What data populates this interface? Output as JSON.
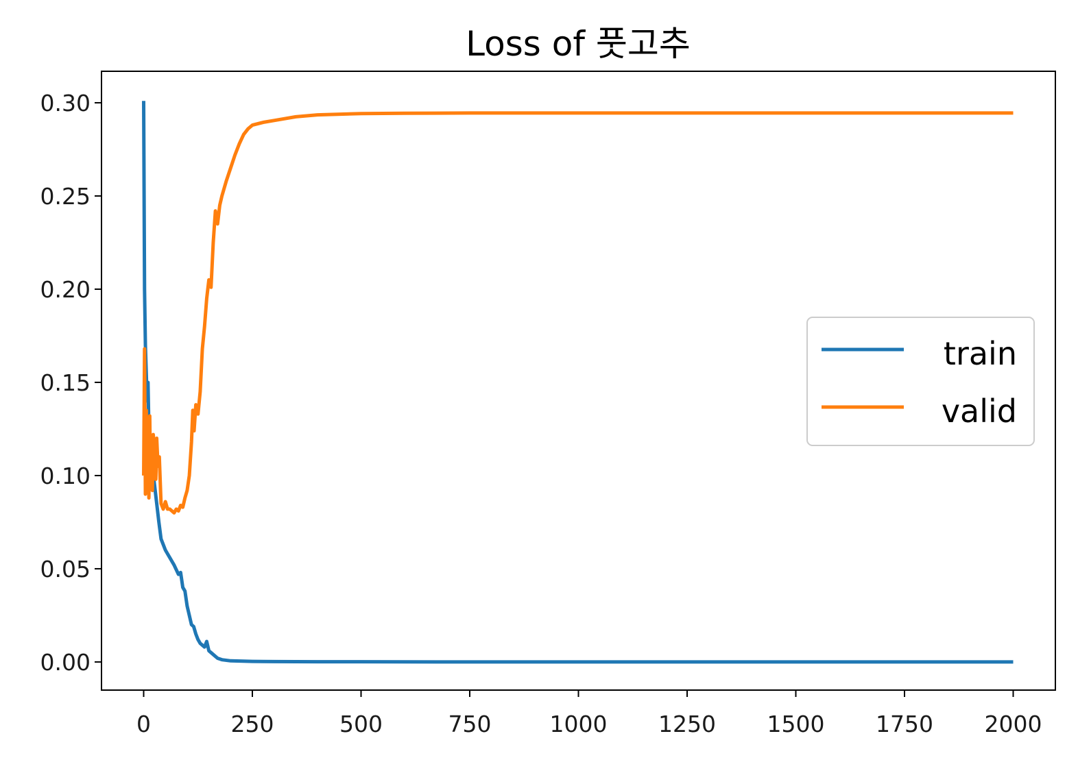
{
  "chart_data": {
    "type": "line",
    "title": "Loss of 풋고추",
    "xlabel": "",
    "ylabel": "",
    "xlim": [
      -97,
      2097
    ],
    "ylim": [
      -0.0151,
      0.3169
    ],
    "x_ticks": [
      0,
      250,
      500,
      750,
      1000,
      1250,
      1500,
      1750,
      2000
    ],
    "x_tick_labels": [
      "0",
      "250",
      "500",
      "750",
      "1000",
      "1250",
      "1500",
      "1750",
      "2000"
    ],
    "y_ticks": [
      0.0,
      0.05,
      0.1,
      0.15,
      0.2,
      0.25,
      0.3
    ],
    "y_tick_labels": [
      "0.00",
      "0.05",
      "0.10",
      "0.15",
      "0.20",
      "0.25",
      "0.30"
    ],
    "grid": false,
    "legend": {
      "position": "center-right",
      "entries": [
        "train",
        "valid"
      ]
    },
    "series": [
      {
        "name": "train",
        "color": "#1f77b4",
        "points": [
          [
            0,
            0.301
          ],
          [
            2,
            0.2
          ],
          [
            4,
            0.17
          ],
          [
            6,
            0.155
          ],
          [
            8,
            0.14
          ],
          [
            10,
            0.15
          ],
          [
            12,
            0.125
          ],
          [
            14,
            0.12
          ],
          [
            16,
            0.11
          ],
          [
            18,
            0.115
          ],
          [
            20,
            0.105
          ],
          [
            25,
            0.095
          ],
          [
            30,
            0.085
          ],
          [
            35,
            0.075
          ],
          [
            40,
            0.066
          ],
          [
            45,
            0.063
          ],
          [
            50,
            0.06
          ],
          [
            60,
            0.056
          ],
          [
            70,
            0.052
          ],
          [
            80,
            0.047
          ],
          [
            85,
            0.048
          ],
          [
            90,
            0.04
          ],
          [
            95,
            0.038
          ],
          [
            100,
            0.03
          ],
          [
            105,
            0.025
          ],
          [
            110,
            0.02
          ],
          [
            115,
            0.019
          ],
          [
            120,
            0.015
          ],
          [
            125,
            0.012
          ],
          [
            130,
            0.01
          ],
          [
            135,
            0.009
          ],
          [
            140,
            0.008
          ],
          [
            145,
            0.011
          ],
          [
            150,
            0.006
          ],
          [
            155,
            0.005
          ],
          [
            160,
            0.004
          ],
          [
            170,
            0.002
          ],
          [
            180,
            0.0012
          ],
          [
            200,
            0.0006
          ],
          [
            250,
            0.0003
          ],
          [
            300,
            0.0002
          ],
          [
            400,
            0.0001
          ],
          [
            500,
            0.0001
          ],
          [
            750,
            0.0
          ],
          [
            1000,
            0.0
          ],
          [
            1500,
            0.0
          ],
          [
            2000,
            0.0
          ]
        ]
      },
      {
        "name": "valid",
        "color": "#ff7f0e",
        "points": [
          [
            0,
            0.1
          ],
          [
            2,
            0.168
          ],
          [
            4,
            0.09
          ],
          [
            6,
            0.135
          ],
          [
            8,
            0.092
          ],
          [
            10,
            0.125
          ],
          [
            12,
            0.088
          ],
          [
            14,
            0.132
          ],
          [
            16,
            0.095
          ],
          [
            18,
            0.105
          ],
          [
            20,
            0.092
          ],
          [
            22,
            0.122
          ],
          [
            25,
            0.115
          ],
          [
            28,
            0.098
          ],
          [
            30,
            0.12
          ],
          [
            33,
            0.105
          ],
          [
            36,
            0.11
          ],
          [
            40,
            0.085
          ],
          [
            45,
            0.082
          ],
          [
            50,
            0.086
          ],
          [
            55,
            0.082
          ],
          [
            60,
            0.082
          ],
          [
            65,
            0.081
          ],
          [
            70,
            0.08
          ],
          [
            75,
            0.082
          ],
          [
            80,
            0.081
          ],
          [
            85,
            0.084
          ],
          [
            90,
            0.083
          ],
          [
            95,
            0.088
          ],
          [
            100,
            0.092
          ],
          [
            105,
            0.1
          ],
          [
            110,
            0.118
          ],
          [
            113,
            0.135
          ],
          [
            116,
            0.124
          ],
          [
            120,
            0.138
          ],
          [
            125,
            0.133
          ],
          [
            130,
            0.145
          ],
          [
            135,
            0.168
          ],
          [
            140,
            0.18
          ],
          [
            145,
            0.195
          ],
          [
            150,
            0.205
          ],
          [
            155,
            0.201
          ],
          [
            160,
            0.225
          ],
          [
            165,
            0.242
          ],
          [
            170,
            0.235
          ],
          [
            175,
            0.245
          ],
          [
            180,
            0.25
          ],
          [
            190,
            0.258
          ],
          [
            200,
            0.265
          ],
          [
            210,
            0.272
          ],
          [
            220,
            0.278
          ],
          [
            230,
            0.283
          ],
          [
            240,
            0.286
          ],
          [
            250,
            0.288
          ],
          [
            275,
            0.2895
          ],
          [
            300,
            0.2905
          ],
          [
            350,
            0.2925
          ],
          [
            400,
            0.2935
          ],
          [
            500,
            0.2942
          ],
          [
            600,
            0.2944
          ],
          [
            750,
            0.2945
          ],
          [
            1000,
            0.2945
          ],
          [
            1500,
            0.2945
          ],
          [
            2000,
            0.2945
          ]
        ]
      }
    ]
  }
}
